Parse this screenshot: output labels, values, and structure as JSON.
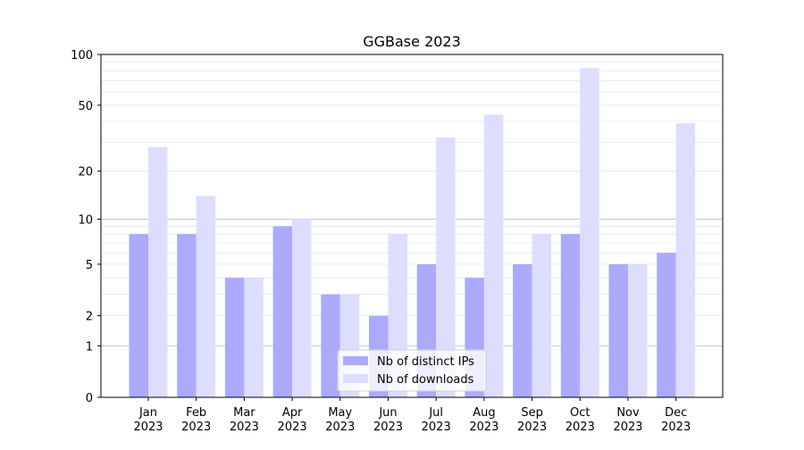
{
  "chart_data": {
    "type": "bar",
    "title": "GGBase 2023",
    "xlabel": "",
    "ylabel": "",
    "yscale": "symlog",
    "ylim": [
      0,
      100
    ],
    "yticks": [
      0,
      1,
      2,
      5,
      10,
      20,
      50,
      100
    ],
    "categories": [
      [
        "Jan",
        "2023"
      ],
      [
        "Feb",
        "2023"
      ],
      [
        "Mar",
        "2023"
      ],
      [
        "Apr",
        "2023"
      ],
      [
        "May",
        "2023"
      ],
      [
        "Jun",
        "2023"
      ],
      [
        "Jul",
        "2023"
      ],
      [
        "Aug",
        "2023"
      ],
      [
        "Sep",
        "2023"
      ],
      [
        "Oct",
        "2023"
      ],
      [
        "Nov",
        "2023"
      ],
      [
        "Dec",
        "2023"
      ]
    ],
    "series": [
      {
        "name": "Nb of distinct IPs",
        "color": "#aaaaff",
        "values": [
          8,
          8,
          4,
          9,
          3,
          2,
          5,
          4,
          5,
          8,
          5,
          6
        ]
      },
      {
        "name": "Nb of downloads",
        "color": "#ddddff",
        "values": [
          28,
          14,
          4,
          10,
          3,
          8,
          32,
          44,
          8,
          83,
          5,
          39
        ]
      }
    ],
    "grid": true,
    "legend": "bottom-center"
  }
}
